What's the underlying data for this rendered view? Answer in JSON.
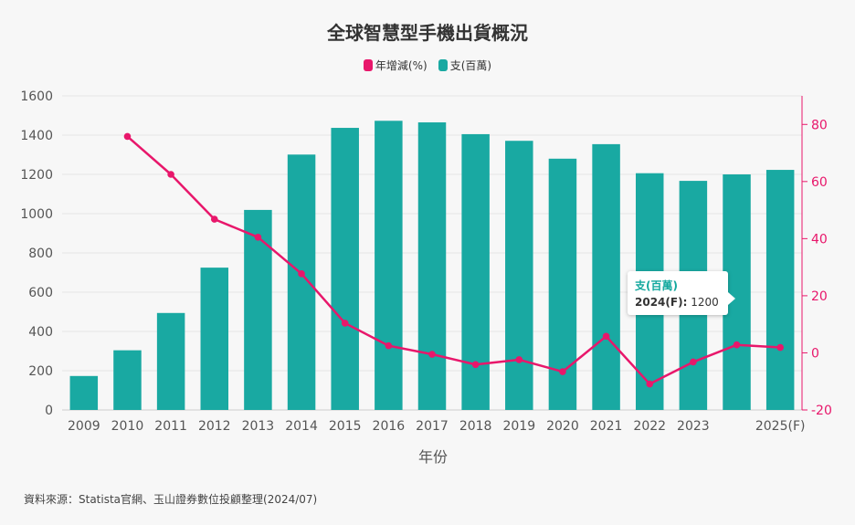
{
  "chart_data": {
    "type": "bar+line",
    "title": "全球智慧型手機出貨概況",
    "legend": [
      {
        "name": "年增減(%)",
        "color": "#e8176b"
      },
      {
        "name": "支(百萬)",
        "color": "#19a9a2"
      }
    ],
    "categories": [
      "2009",
      "2010",
      "2011",
      "2012",
      "2013",
      "2014",
      "2015",
      "2016",
      "2017",
      "2018",
      "2019",
      "2020",
      "2021",
      "2022",
      "2023",
      "2024(F)",
      "2025(F)"
    ],
    "x_tick_labels": [
      "2009",
      "2010",
      "2011",
      "2012",
      "2013",
      "2014",
      "2015",
      "2016",
      "2017",
      "2018",
      "2019",
      "2020",
      "2021",
      "2022",
      "2023",
      "",
      "2025(F)"
    ],
    "series": [
      {
        "name": "支(百萬)",
        "type": "bar",
        "axis": "left",
        "values": [
          173,
          304,
          494,
          725,
          1019,
          1301,
          1437,
          1473,
          1465,
          1405,
          1371,
          1280,
          1354,
          1206,
          1167,
          1200,
          1223
        ]
      },
      {
        "name": "年增減(%)",
        "type": "line",
        "axis": "right",
        "values": [
          null,
          75.8,
          62.5,
          46.8,
          40.5,
          27.7,
          10.4,
          2.5,
          -0.5,
          -4.1,
          -2.4,
          -6.6,
          5.8,
          -10.9,
          -3.2,
          2.8,
          1.9
        ]
      }
    ],
    "xlabel": "年份",
    "ylim_left": [
      0,
      1600
    ],
    "yticks_left": [
      0,
      200,
      400,
      600,
      800,
      1000,
      1200,
      1400,
      1600
    ],
    "ylim_right": [
      -20,
      90
    ],
    "yticks_right": [
      -20,
      0,
      20,
      40,
      60,
      80
    ]
  },
  "tooltip": {
    "series": "支(百萬)",
    "label": "2024(F):",
    "value": "1200"
  },
  "source": "資料來源：Statista官網、玉山證券數位投顧整理(2024/07)"
}
